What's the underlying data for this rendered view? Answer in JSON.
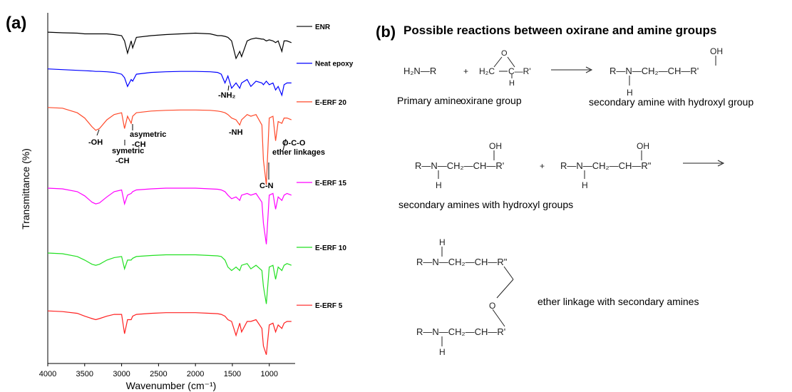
{
  "panel_a": {
    "label": "(a)",
    "chart_data": {
      "type": "line",
      "xlabel": "Wavenumber (cm⁻¹)",
      "ylabel": "Transmittance (%)",
      "xlim": [
        4000,
        650
      ],
      "ylim": [
        0,
        100
      ],
      "xticks": [
        4000,
        3500,
        3000,
        2500,
        2000,
        1500,
        1000
      ],
      "x": [
        4000,
        3800,
        3600,
        3500,
        3400,
        3350,
        3300,
        3200,
        3100,
        3000,
        2960,
        2920,
        2870,
        2850,
        2800,
        2600,
        2400,
        2200,
        2000,
        1800,
        1700,
        1650,
        1600,
        1560,
        1510,
        1450,
        1400,
        1375,
        1300,
        1250,
        1180,
        1100,
        1080,
        1040,
        1000,
        950,
        915,
        880,
        830,
        800,
        760,
        700
      ],
      "series": [
        {
          "name": "ENR",
          "color": "#000000",
          "values": [
            94.5,
            94.3,
            94.2,
            94,
            94,
            94,
            94,
            94,
            93.8,
            93.5,
            92,
            88.5,
            92,
            90,
            93,
            93.5,
            93.8,
            94,
            94.2,
            94,
            93.5,
            93.5,
            93.3,
            93,
            92,
            87,
            89,
            87.5,
            92,
            92.5,
            92.8,
            92.5,
            92.5,
            92,
            92.3,
            92,
            91.5,
            92,
            89,
            92,
            92,
            91.5
          ]
        },
        {
          "name": "Neat epoxy",
          "color": "#0000ff",
          "values": [
            84,
            83.8,
            83.6,
            83.5,
            83.4,
            83.3,
            83.3,
            83.2,
            83,
            82.5,
            81.5,
            79,
            81,
            80.5,
            82.5,
            83,
            83.2,
            83.3,
            83.3,
            83.2,
            83,
            82.5,
            80,
            82,
            78.5,
            80,
            78.5,
            80,
            81,
            79,
            80.5,
            80,
            79.5,
            80.5,
            79.5,
            80,
            78,
            79,
            76.5,
            79.5,
            80,
            80
          ]
        },
        {
          "name": "E-ERF 20",
          "color": "#ff4a2a",
          "values": [
            73,
            72.8,
            71.5,
            70,
            67.5,
            66.5,
            67,
            69.5,
            71,
            71.5,
            67,
            70.5,
            68.5,
            70.5,
            71.5,
            72,
            72.2,
            72.3,
            72.3,
            72.2,
            72,
            71.8,
            71.5,
            71,
            70,
            69.5,
            68,
            69.5,
            71,
            70.5,
            71,
            68,
            58,
            51,
            70,
            70.5,
            63.5,
            69,
            68.5,
            70,
            70,
            69.5
          ]
        },
        {
          "name": "E-ERF 15",
          "color": "#ff00ff",
          "values": [
            50,
            49.8,
            49,
            47.8,
            46,
            45.5,
            45.8,
            47.5,
            49,
            49.5,
            45.5,
            48,
            48.5,
            49,
            49.5,
            49.8,
            50,
            50,
            50,
            49.8,
            49.7,
            49.5,
            49,
            48,
            47,
            47.5,
            46.5,
            48,
            48.5,
            48,
            48.5,
            46,
            40,
            34,
            48,
            48.5,
            44,
            47.5,
            46.5,
            48,
            48.5,
            48
          ]
        },
        {
          "name": "E-ERF 10",
          "color": "#22e022",
          "values": [
            31.5,
            31.3,
            30.5,
            29.5,
            28.3,
            28,
            28.3,
            29.5,
            30.2,
            30.5,
            27,
            29.5,
            29.5,
            30,
            30.5,
            30.8,
            31,
            31,
            31,
            30.8,
            30.7,
            30.5,
            29.5,
            27.5,
            26.5,
            27.5,
            26.5,
            28,
            28.5,
            27,
            28,
            26.5,
            22,
            17,
            27.5,
            28,
            24,
            27.5,
            26.5,
            28,
            28.5,
            28
          ]
        },
        {
          "name": "E-ERF 5",
          "color": "#ff2020",
          "values": [
            15,
            14.8,
            14.3,
            13.5,
            12.8,
            12.5,
            12.8,
            13.5,
            14,
            14,
            8.5,
            12.5,
            12.5,
            13.5,
            14,
            14.3,
            14.5,
            14.5,
            14.5,
            14.3,
            14.2,
            14,
            13.5,
            12.5,
            12,
            8,
            11.5,
            9,
            12,
            12,
            12.5,
            10,
            5,
            2.5,
            11,
            11.5,
            9,
            11,
            10,
            11.5,
            12,
            12
          ]
        }
      ],
      "annotations": [
        "-NH₂",
        "-OH",
        "symetric",
        "-CH",
        "asymetric",
        "-CH",
        "-NH",
        "C-N",
        "O-C-O",
        "ether linkages"
      ]
    }
  },
  "panel_b": {
    "label": "(b)",
    "title": "Possible reactions between oxirane and amine groups",
    "captions": [
      "Primary amine",
      "oxirane group",
      "secondary amine with hydroxyl group",
      "secondary amines with hydroxyl groups",
      "ether linkage with secondary amines"
    ],
    "formulas": [
      "H₂N—R",
      "+",
      "H₂C",
      "C—R'",
      "O",
      "H",
      "R—N—CH₂—CH—R'",
      "H",
      "OH",
      "R—N—CH₂—CH—R'",
      "H",
      "OH",
      "+",
      "R—N—CH₂—CH—R\"",
      "H",
      "OH",
      "H",
      "R—N—CH₂—CH—R\"",
      "O",
      "R—N—CH₂—CH—R'",
      "H"
    ]
  }
}
